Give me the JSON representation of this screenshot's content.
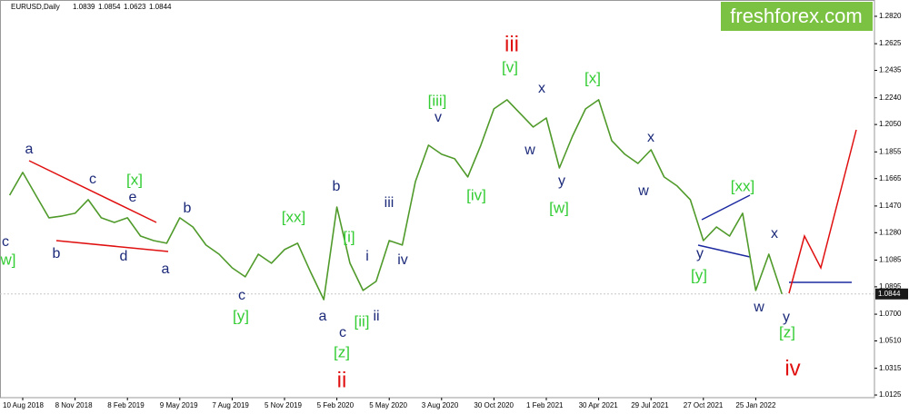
{
  "chart_data": {
    "type": "line",
    "header": {
      "symbol": "EURUSD,Daily",
      "open": 1.0839,
      "high": 1.0854,
      "low": 1.0623,
      "close": 1.0844
    },
    "logo": "freshforex.com",
    "categories": [
      null,
      "10 Aug 2018",
      null,
      null,
      null,
      "8 Nov 2018",
      null,
      null,
      null,
      "8 Feb 2019",
      null,
      null,
      null,
      "9 May 2019",
      null,
      null,
      null,
      "7 Aug 2019",
      null,
      null,
      null,
      "5 Nov 2019",
      null,
      null,
      null,
      "5 Feb 2020",
      null,
      null,
      null,
      "5 May 2020",
      null,
      null,
      null,
      "3 Aug 2020",
      null,
      null,
      null,
      "30 Oct 2020",
      null,
      null,
      null,
      "1 Feb 2021",
      null,
      null,
      null,
      "30 Apr 2021",
      null,
      null,
      null,
      "29 Jul 2021",
      null,
      null,
      null,
      "27 Oct 2021",
      null,
      null,
      null,
      "25 Jan 2022",
      null,
      null
    ],
    "series": [
      {
        "name": "EURUSD",
        "color": "#4f9a2a",
        "values": [
          1.1547,
          1.1709,
          1.1547,
          1.1386,
          1.1399,
          1.1418,
          1.1515,
          1.1386,
          1.1353,
          1.1386,
          1.1256,
          1.1224,
          1.1205,
          1.1386,
          1.1321,
          1.1192,
          1.1127,
          1.103,
          1.0966,
          1.1127,
          1.1063,
          1.116,
          1.1205,
          1.0998,
          1.0804,
          1.1463,
          1.1063,
          1.0869,
          1.0934,
          1.1224,
          1.1192,
          1.1644,
          1.1903,
          1.1838,
          1.1806,
          1.1677,
          1.1903,
          1.2161,
          1.2226,
          1.2129,
          1.2032,
          1.2096,
          1.1741,
          1.1967,
          1.2161,
          1.2226,
          1.1935,
          1.1838,
          1.1773,
          1.187,
          1.1677,
          1.1612,
          1.1515,
          1.1224,
          1.1321,
          1.1256,
          1.1418,
          1.0869,
          1.1127,
          1.0844
        ]
      }
    ],
    "current_price": 1.0844,
    "ylim": [
      1.0106,
      1.2936
    ],
    "yticks": [
      {
        "value": 1.282,
        "label": "1.2820"
      },
      1.2625,
      1.2435,
      {
        "value": 1.224,
        "label": "1.2240"
      },
      {
        "value": 1.205,
        "label": "1.2050"
      },
      1.1855,
      1.1665,
      {
        "value": 1.147,
        "label": "1.1470"
      },
      {
        "value": 1.128,
        "label": "1.1280"
      },
      1.1085,
      1.0895,
      {
        "value": 1.07,
        "label": "1.0700"
      },
      {
        "value": 1.051,
        "label": "1.0510"
      },
      1.0315,
      1.0125
    ],
    "grid": false,
    "annotation_colors": {
      "minor": "#1c2a7a",
      "intermediate": "#33cc33",
      "primary": "#e01010"
    },
    "annotations": [
      {
        "text": "c",
        "level": "minor"
      },
      {
        "text": "a",
        "level": "minor"
      },
      {
        "text": "b",
        "level": "minor"
      },
      {
        "text": "c",
        "level": "minor"
      },
      {
        "text": "e",
        "level": "minor"
      },
      {
        "text": "d",
        "level": "minor"
      },
      {
        "text": "a",
        "level": "minor"
      },
      {
        "text": "b",
        "level": "minor"
      },
      {
        "text": "c",
        "level": "minor"
      },
      {
        "text": "b",
        "level": "minor"
      },
      {
        "text": "a",
        "level": "minor"
      },
      {
        "text": "c",
        "level": "minor"
      },
      {
        "text": "iii",
        "level": "minor"
      },
      {
        "text": "i",
        "level": "minor"
      },
      {
        "text": "iv",
        "level": "minor"
      },
      {
        "text": "ii",
        "level": "minor"
      },
      {
        "text": "v",
        "level": "minor"
      },
      {
        "text": "x",
        "level": "minor"
      },
      {
        "text": "w",
        "level": "minor"
      },
      {
        "text": "y",
        "level": "minor"
      },
      {
        "text": "x",
        "level": "minor"
      },
      {
        "text": "w",
        "level": "minor"
      },
      {
        "text": "y",
        "level": "minor"
      },
      {
        "text": "x",
        "level": "minor"
      },
      {
        "text": "w",
        "level": "minor"
      },
      {
        "text": "y",
        "level": "minor"
      },
      {
        "text": "w]",
        "level": "intermediate"
      },
      {
        "text": "[x]",
        "level": "intermediate"
      },
      {
        "text": "[xx]",
        "level": "intermediate"
      },
      {
        "text": "[y]",
        "level": "intermediate"
      },
      {
        "text": "[i]",
        "level": "intermediate"
      },
      {
        "text": "[ii]",
        "level": "intermediate"
      },
      {
        "text": "[z]",
        "level": "intermediate"
      },
      {
        "text": "[iii]",
        "level": "intermediate"
      },
      {
        "text": "[iv]",
        "level": "intermediate"
      },
      {
        "text": "[v]",
        "level": "intermediate"
      },
      {
        "text": "[w]",
        "level": "intermediate"
      },
      {
        "text": "[x]",
        "level": "intermediate"
      },
      {
        "text": "[xx]",
        "level": "intermediate"
      },
      {
        "text": "[y]",
        "level": "intermediate"
      },
      {
        "text": "[z]",
        "level": "intermediate"
      },
      {
        "text": "iii",
        "level": "primary"
      },
      {
        "text": "ii",
        "level": "primary"
      },
      {
        "text": "iv",
        "level": "primary"
      }
    ]
  }
}
